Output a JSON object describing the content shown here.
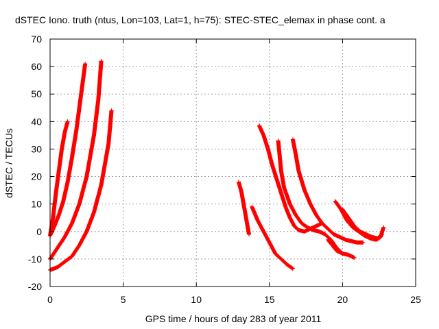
{
  "chart_data": {
    "type": "scatter",
    "title": "dSTEC Iono. truth (ntus, Lon=103, Lat=1, h=75): STEC-STEC_elemax in phase cont. a",
    "xlabel": "GPS time / hours of day 283 of year 2011",
    "ylabel": "dSTEC  / TECUs",
    "xlim": [
      0,
      25
    ],
    "ylim": [
      -20,
      70
    ],
    "xticks": [
      "0",
      "5",
      "10",
      "15",
      "20",
      "25"
    ],
    "yticks": [
      "-20",
      "-10",
      "0",
      "10",
      "20",
      "30",
      "40",
      "50",
      "60",
      "70"
    ],
    "grid": true,
    "legend": "none",
    "marker": "+",
    "color": "#ff0000",
    "series": [
      {
        "x": [
          0.0,
          0.2,
          0.4,
          0.6,
          0.8,
          1.0,
          1.2
        ],
        "y": [
          -1.5,
          5,
          14,
          22,
          30,
          36,
          40
        ]
      },
      {
        "x": [
          0.0,
          0.3,
          0.6,
          0.9,
          1.2,
          1.5,
          1.8,
          2.1,
          2.4
        ],
        "y": [
          -1.5,
          2,
          6,
          11,
          18,
          27,
          37,
          49,
          61
        ]
      },
      {
        "x": [
          0.0,
          0.5,
          1.0,
          1.5,
          2.0,
          2.5,
          3.0,
          3.3,
          3.5
        ],
        "y": [
          -10,
          -6,
          -2,
          3,
          10,
          20,
          35,
          48,
          62
        ]
      },
      {
        "x": [
          0.0,
          0.5,
          1.0,
          1.5,
          2.0,
          2.5,
          3.0,
          3.5,
          4.0,
          4.2
        ],
        "y": [
          -14,
          -13,
          -11,
          -9,
          -5,
          0,
          7,
          17,
          32,
          44
        ]
      },
      {
        "x": [
          12.9,
          13.1,
          13.3,
          13.5,
          13.6
        ],
        "y": [
          18,
          14,
          8,
          2,
          -1
        ]
      },
      {
        "x": [
          13.8,
          14.2,
          14.6,
          15.0,
          15.4,
          15.8,
          16.2,
          16.6
        ],
        "y": [
          9,
          4,
          0,
          -4,
          -8,
          -10,
          -12,
          -13.5
        ]
      },
      {
        "x": [
          14.3,
          14.6,
          14.9,
          15.2,
          15.5,
          15.8,
          16.1,
          16.4,
          16.7,
          17.0,
          17.4,
          17.8,
          18.2,
          18.6
        ],
        "y": [
          38.5,
          35,
          30,
          24,
          19,
          14,
          9,
          5,
          2,
          0.5,
          0,
          1,
          2,
          3
        ]
      },
      {
        "x": [
          15.6,
          15.8,
          16.0,
          16.4,
          16.8,
          17.2,
          17.6,
          18.0,
          18.4,
          18.8,
          19.2,
          19.6,
          20.0
        ],
        "y": [
          33,
          22,
          16,
          10,
          6,
          3,
          1.5,
          0.5,
          0,
          -1,
          -3,
          -6,
          -8
        ]
      },
      {
        "x": [
          16.6,
          16.8,
          17.0,
          17.4,
          17.8,
          18.2,
          18.6,
          19.0,
          19.4,
          19.8,
          20.2,
          20.6,
          21.0,
          21.4
        ],
        "y": [
          33.5,
          28,
          22,
          15,
          10,
          6,
          3,
          1,
          -1,
          -2,
          -3,
          -3.5,
          -4,
          -4
        ]
      },
      {
        "x": [
          19.5,
          19.9,
          20.3,
          20.7,
          21.1,
          21.5,
          21.9,
          22.3,
          22.6,
          22.8
        ],
        "y": [
          11,
          8,
          4,
          1.5,
          0,
          -1.5,
          -2.5,
          -3,
          -2,
          1.5
        ]
      },
      {
        "x": [
          20.0,
          20.4,
          20.8,
          21.2,
          21.6,
          22.0,
          22.4,
          22.7
        ],
        "y": [
          8,
          5,
          2,
          0,
          -1,
          -2,
          -2.5,
          -1
        ]
      },
      {
        "x": [
          19.0,
          19.3,
          19.6,
          20.0,
          20.4,
          20.8
        ],
        "y": [
          -3,
          -5,
          -7,
          -8,
          -8.5,
          -9.5
        ]
      }
    ]
  }
}
